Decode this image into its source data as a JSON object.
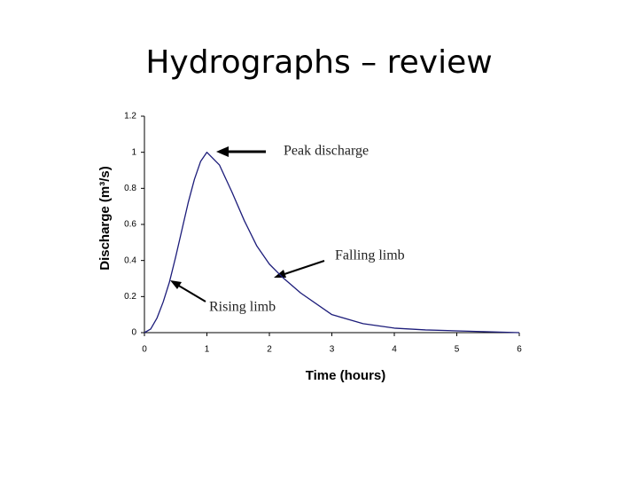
{
  "chart_data": {
    "type": "line",
    "title": "Hydrographs – review",
    "xlabel": "Time (hours)",
    "ylabel": "Discharge (m³/s)",
    "x": [
      0,
      0.1,
      0.2,
      0.3,
      0.4,
      0.5,
      0.6,
      0.7,
      0.8,
      0.9,
      1.0,
      1.2,
      1.4,
      1.6,
      1.8,
      2.0,
      2.2,
      2.5,
      3,
      3.5,
      4,
      4.5,
      5,
      6
    ],
    "values": [
      0,
      0.02,
      0.08,
      0.17,
      0.28,
      0.42,
      0.57,
      0.72,
      0.85,
      0.95,
      1.0,
      0.93,
      0.78,
      0.62,
      0.48,
      0.38,
      0.31,
      0.22,
      0.1,
      0.05,
      0.025,
      0.015,
      0.01,
      0
    ],
    "color": "#1c1c7a",
    "xlim": [
      0,
      6
    ],
    "xticks": [
      0,
      1,
      2,
      3,
      4,
      5,
      6
    ],
    "ylim": [
      0,
      1.2
    ],
    "yticks": [
      0,
      0.2,
      0.4,
      0.6,
      0.8,
      1,
      1.2
    ],
    "annotations": [
      "Peak discharge",
      "Falling limb",
      "Rising limb"
    ]
  }
}
